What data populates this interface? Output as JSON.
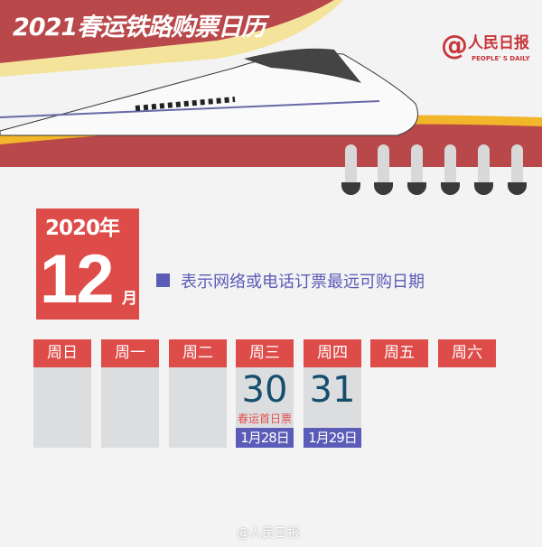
{
  "header": {
    "title": "2021春运铁路购票日历",
    "logo_cn": "人民日报",
    "logo_en": "PEOPLE' S DAILY"
  },
  "colors": {
    "red": "#de4c4a",
    "purple": "#5b5bb8",
    "gray": "#dcdddf"
  },
  "calendar": {
    "year": "2020年",
    "month": "12",
    "month_suffix": "月",
    "legend": "表示网络或电话订票最远可购日期",
    "weekdays": [
      "周日",
      "周一",
      "周二",
      "周三",
      "周四",
      "周五",
      "周六"
    ],
    "days": [
      {
        "weekday": "周三",
        "date": "30",
        "note": "春运首日票",
        "buy_date": "1月28日"
      },
      {
        "weekday": "周四",
        "date": "31",
        "buy_date": "1月29日"
      }
    ]
  },
  "watermark": "@人民日报"
}
